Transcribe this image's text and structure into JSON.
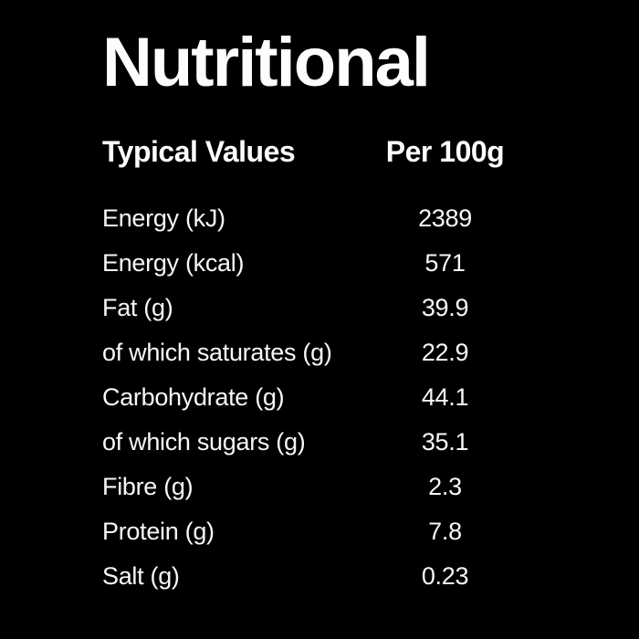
{
  "label": {
    "title": "Nutritional",
    "header": {
      "label_col": "Typical Values",
      "value_col": "Per 100g"
    },
    "rows": [
      {
        "name": "Energy (kJ)",
        "value": "2389"
      },
      {
        "name": "Energy (kcal)",
        "value": "571"
      },
      {
        "name": "Fat (g)",
        "value": "39.9"
      },
      {
        "name": "of which saturates (g)",
        "value": "22.9"
      },
      {
        "name": "Carbohydrate (g)",
        "value": "44.1"
      },
      {
        "name": "of which sugars (g)",
        "value": "35.1"
      },
      {
        "name": "Fibre (g)",
        "value": "2.3"
      },
      {
        "name": "Protein (g)",
        "value": "7.8"
      },
      {
        "name": "Salt (g)",
        "value": "0.23"
      }
    ],
    "colors": {
      "background": "#000000",
      "text": "#ffffff"
    }
  }
}
